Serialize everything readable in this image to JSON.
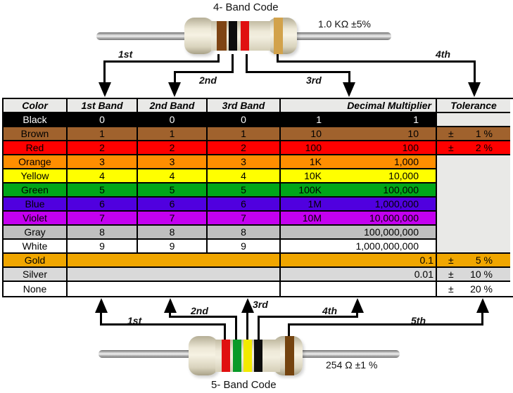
{
  "top_section": {
    "title": "4- Band Code",
    "value_label": "1.0 KΩ  ±5%",
    "band_labels": [
      "1st",
      "2nd",
      "3rd",
      "4th"
    ],
    "bands": [
      {
        "name": "brown",
        "hex": "#7E4413"
      },
      {
        "name": "black",
        "hex": "#0D0D0D"
      },
      {
        "name": "red",
        "hex": "#E01010"
      },
      {
        "name": "gold",
        "hex": "#D2A24B"
      }
    ]
  },
  "bottom_section": {
    "title": "5- Band Code",
    "value_label": "254 Ω  ±1 %",
    "band_labels": [
      "1st",
      "2nd",
      "3rd",
      "4th",
      "5th"
    ],
    "bands": [
      {
        "name": "red",
        "hex": "#E01010"
      },
      {
        "name": "green",
        "hex": "#089A28"
      },
      {
        "name": "yellow",
        "hex": "#F2EA00"
      },
      {
        "name": "black",
        "hex": "#0D0D0D"
      },
      {
        "name": "brown",
        "hex": "#74430F"
      }
    ]
  },
  "table": {
    "headers": [
      "Color",
      "1st Band",
      "2nd Band",
      "3rd Band",
      "Decimal Multiplier",
      "Tolerance"
    ],
    "plus_minus": "±",
    "colors": {
      "header_bg": "#E9E9E7",
      "empty_tolerance_bg": "#E9E9E7",
      "border": "#000000"
    },
    "rows": [
      {
        "color": "Black",
        "hex": "#000000",
        "fg": "#FFFFFF",
        "band1": "0",
        "band2": "0",
        "band3": "0",
        "mult_short": "1",
        "mult_long": "1",
        "tolerance": null
      },
      {
        "color": "Brown",
        "hex": "#A0622D",
        "band1": "1",
        "band2": "1",
        "band3": "1",
        "mult_short": "10",
        "mult_long": "10",
        "tolerance": "1 %"
      },
      {
        "color": "Red",
        "hex": "#FF0000",
        "band1": "2",
        "band2": "2",
        "band3": "2",
        "mult_short": "100",
        "mult_long": "100",
        "tolerance": "2 %"
      },
      {
        "color": "Orange",
        "hex": "#FF8E00",
        "band1": "3",
        "band2": "3",
        "band3": "3",
        "mult_short": "1K",
        "mult_long": "1,000",
        "tolerance": null
      },
      {
        "color": "Yellow",
        "hex": "#FFFF00",
        "band1": "4",
        "band2": "4",
        "band3": "4",
        "mult_short": "10K",
        "mult_long": "10,000",
        "tolerance": null
      },
      {
        "color": "Green",
        "hex": "#00A619",
        "band1": "5",
        "band2": "5",
        "band3": "5",
        "mult_short": "100K",
        "mult_long": "100,000",
        "tolerance": null
      },
      {
        "color": "Blue",
        "hex": "#5000DF",
        "band1": "6",
        "band2": "6",
        "band3": "6",
        "mult_short": "1M",
        "mult_long": "1,000,000",
        "tolerance": null
      },
      {
        "color": "Violet",
        "hex": "#C400F0",
        "band1": "7",
        "band2": "7",
        "band3": "7",
        "mult_short": "10M",
        "mult_long": "10,000,000",
        "tolerance": null
      },
      {
        "color": "Gray",
        "hex": "#BFBFBF",
        "band1": "8",
        "band2": "8",
        "band3": "8",
        "mult_short": "",
        "mult_long": "100,000,000",
        "tolerance": null
      },
      {
        "color": "White",
        "hex": "#FFFFFF",
        "band1": "9",
        "band2": "9",
        "band3": "9",
        "mult_short": "",
        "mult_long": "1,000,000,000",
        "tolerance": null
      },
      {
        "color": "Gold",
        "hex": "#F0A600",
        "merged_bands": true,
        "flush": true,
        "mult_short": "",
        "mult_long": "0.1",
        "tolerance": "5 %"
      },
      {
        "color": "Silver",
        "hex": "#D9D9D9",
        "merged_bands": true,
        "flush": true,
        "mult_short": "",
        "mult_long": "0.01",
        "tolerance": "10 %"
      },
      {
        "color": "None",
        "hex": "#FFFFFF",
        "merged_bands": true,
        "mult_short": "",
        "mult_long": "",
        "tolerance": "20 %"
      }
    ]
  }
}
